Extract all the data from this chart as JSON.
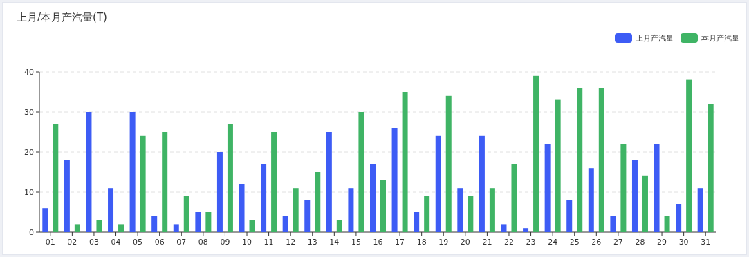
{
  "chart_data": {
    "type": "bar",
    "title": "上月/本月产汽量(T)",
    "categories": [
      "01",
      "02",
      "03",
      "04",
      "05",
      "06",
      "07",
      "08",
      "09",
      "10",
      "11",
      "12",
      "13",
      "14",
      "15",
      "16",
      "17",
      "18",
      "19",
      "20",
      "21",
      "22",
      "23",
      "24",
      "25",
      "26",
      "27",
      "28",
      "29",
      "30",
      "31"
    ],
    "series": [
      {
        "name": "上月产汽量",
        "color": "#3d5cf5",
        "values": [
          6,
          18,
          30,
          11,
          30,
          4,
          2,
          5,
          20,
          12,
          17,
          4,
          8,
          25,
          11,
          17,
          26,
          5,
          24,
          11,
          24,
          2,
          1,
          22,
          8,
          16,
          4,
          18,
          22,
          7,
          11
        ]
      },
      {
        "name": "本月产汽量",
        "color": "#3fb465",
        "values": [
          27,
          2,
          3,
          2,
          24,
          25,
          9,
          5,
          27,
          3,
          25,
          11,
          15,
          3,
          30,
          13,
          35,
          9,
          34,
          9,
          11,
          17,
          39,
          33,
          36,
          36,
          22,
          14,
          4,
          38,
          32
        ]
      }
    ],
    "ylim": [
      0,
      40
    ],
    "yticks": [
      0,
      10,
      20,
      30,
      40
    ],
    "grid": "y",
    "legend": "top right"
  }
}
